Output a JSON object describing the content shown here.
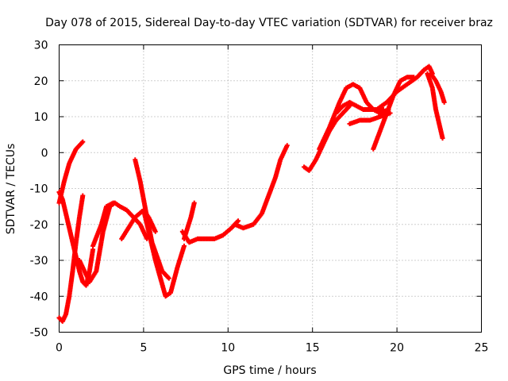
{
  "chart_data": {
    "type": "scatter",
    "title": "Day 078 of 2015, Sidereal Day-to-day VTEC variation (SDTVAR) for receiver braz",
    "xlabel": "GPS time / hours",
    "ylabel": "SDTVAR / TECUs",
    "xlim": [
      0,
      25
    ],
    "ylim": [
      -50,
      30
    ],
    "xticks": [
      "0",
      "5",
      "10",
      "15",
      "20",
      "25"
    ],
    "yticks": [
      "-50",
      "-40",
      "-30",
      "-20",
      "-10",
      "0",
      "10",
      "20",
      "30"
    ],
    "grid": true,
    "marker": "plus",
    "color": "#ff0000",
    "series": [
      {
        "x": [
          0,
          0.2,
          0.4,
          0.6,
          0.8,
          1.0,
          1.2,
          1.4,
          1.6,
          1.8,
          2.0
        ],
        "y": [
          -11,
          -13,
          -17,
          -21,
          -25,
          -29,
          -33,
          -36,
          -37,
          -33,
          -27
        ]
      },
      {
        "x": [
          0,
          0.3,
          0.6,
          0.8,
          1.0,
          1.2,
          1.4
        ],
        "y": [
          -14,
          -8,
          -3,
          -1,
          1,
          2,
          3
        ]
      },
      {
        "x": [
          0,
          0.2,
          0.4,
          0.6,
          0.8,
          1.0,
          1.2,
          1.4
        ],
        "y": [
          -46,
          -47,
          -45,
          -40,
          -33,
          -25,
          -18,
          -12
        ]
      },
      {
        "x": [
          1.2,
          1.8,
          2.2,
          2.6,
          3.0,
          3.3,
          3.6,
          4.0,
          4.4,
          4.8,
          5.2
        ],
        "y": [
          -30,
          -36,
          -33,
          -22,
          -15,
          -14,
          -15,
          -16,
          -18,
          -20,
          -24
        ]
      },
      {
        "x": [
          2.0,
          2.5,
          2.8,
          3.2
        ],
        "y": [
          -26,
          -20,
          -15,
          -14
        ]
      },
      {
        "x": [
          3.7,
          4.1,
          4.5,
          5.0,
          5.3,
          5.7
        ],
        "y": [
          -24,
          -21,
          -18,
          -16,
          -18,
          -22
        ]
      },
      {
        "x": [
          4.5,
          4.8,
          5.2,
          5.5,
          5.8,
          6.1,
          6.5
        ],
        "y": [
          -2,
          -8,
          -18,
          -25,
          -29,
          -33,
          -35
        ]
      },
      {
        "x": [
          5.0,
          5.4,
          5.7,
          6.0,
          6.3,
          6.6,
          7.0,
          7.4
        ],
        "y": [
          -16,
          -24,
          -30,
          -35,
          -40,
          -39,
          -32,
          -26
        ]
      },
      {
        "x": [
          7.4,
          7.8,
          8.0
        ],
        "y": [
          -24,
          -18,
          -14
        ]
      },
      {
        "x": [
          7.3,
          7.7,
          8.2,
          8.7,
          9.2,
          9.7,
          10.2,
          10.6
        ],
        "y": [
          -22,
          -25,
          -24,
          -24,
          -24,
          -23,
          -21,
          -19
        ]
      },
      {
        "x": [
          10.4,
          10.9,
          11.5,
          12.0,
          12.4,
          12.8,
          13.1,
          13.5
        ],
        "y": [
          -20,
          -21,
          -20,
          -17,
          -12,
          -7,
          -2,
          2
        ]
      },
      {
        "x": [
          14.5,
          14.8,
          15.2,
          15.6,
          16.0,
          16.4,
          16.8,
          17.2
        ],
        "y": [
          -4,
          -5,
          -2,
          2,
          6,
          9,
          11,
          13
        ]
      },
      {
        "x": [
          15.4,
          16.0,
          16.6,
          17.0,
          17.4,
          17.8,
          18.2,
          18.6,
          19.0,
          19.5
        ],
        "y": [
          1,
          7,
          14,
          18,
          19,
          18,
          14,
          12,
          11,
          12
        ]
      },
      {
        "x": [
          16.4,
          16.8,
          17.2,
          17.6,
          18.0,
          18.4,
          18.8,
          19.2
        ],
        "y": [
          11,
          13,
          14,
          13,
          12,
          12,
          12,
          12
        ]
      },
      {
        "x": [
          17.2,
          17.8,
          18.4,
          19.0,
          19.6
        ],
        "y": [
          8,
          9,
          9,
          10,
          11
        ]
      },
      {
        "x": [
          18.6,
          19.0,
          19.4,
          19.8,
          20.2,
          20.6,
          21.0
        ],
        "y": [
          1,
          6,
          11,
          16,
          20,
          21,
          21
        ]
      },
      {
        "x": [
          18.8,
          19.4,
          20.0,
          20.6,
          21.2,
          21.6,
          21.9,
          22.1
        ],
        "y": [
          12,
          14,
          17,
          19,
          21,
          23,
          24,
          22
        ]
      },
      {
        "x": [
          21.8,
          22.1,
          22.3,
          22.5,
          22.7
        ],
        "y": [
          22,
          18,
          12,
          8,
          4
        ]
      },
      {
        "x": [
          22.0,
          22.3,
          22.6,
          22.8
        ],
        "y": [
          22,
          20,
          17,
          14
        ]
      }
    ]
  }
}
